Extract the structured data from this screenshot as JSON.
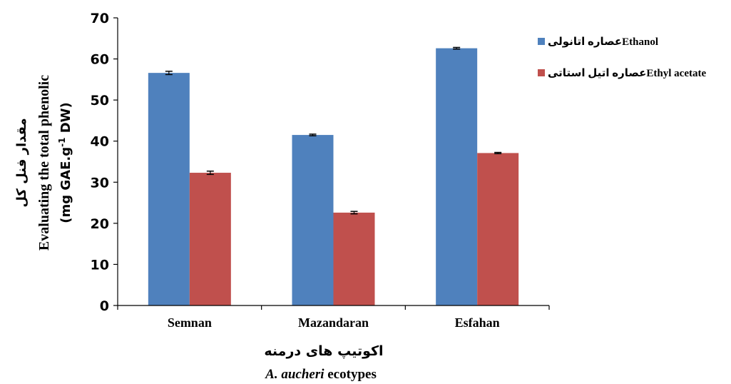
{
  "chart_data": {
    "type": "bar",
    "categories": [
      "Semnan",
      "Mazandaran",
      "Esfahan"
    ],
    "series": [
      {
        "name": "عصاره اتانولیEthanol",
        "color": "#4f81bd",
        "values": [
          56.6,
          41.5,
          62.6
        ],
        "errors": [
          0.4,
          0.2,
          0.2
        ]
      },
      {
        "name": "عصاره اتیل استاتیEthyl acetate",
        "color": "#c0504d",
        "values": [
          32.3,
          22.6,
          37.1
        ],
        "errors": [
          0.4,
          0.3,
          0.15
        ]
      }
    ],
    "ylim": [
      0,
      70
    ],
    "yticks": [
      0,
      10,
      20,
      30,
      40,
      50,
      60,
      70
    ],
    "ylabel": {
      "fa": "مقدار فنل کل",
      "en": "Evaluating the total phenolic",
      "unit_prefix": "(mg GAE.g",
      "unit_sup": "-1",
      "unit_suffix": " DW)"
    },
    "xlabel": {
      "fa": "اکوتیپ های درمنه",
      "en_italic": "A. aucheri",
      "en_rest": " ecotypes"
    },
    "legend_position": "top-right",
    "grid": false
  }
}
